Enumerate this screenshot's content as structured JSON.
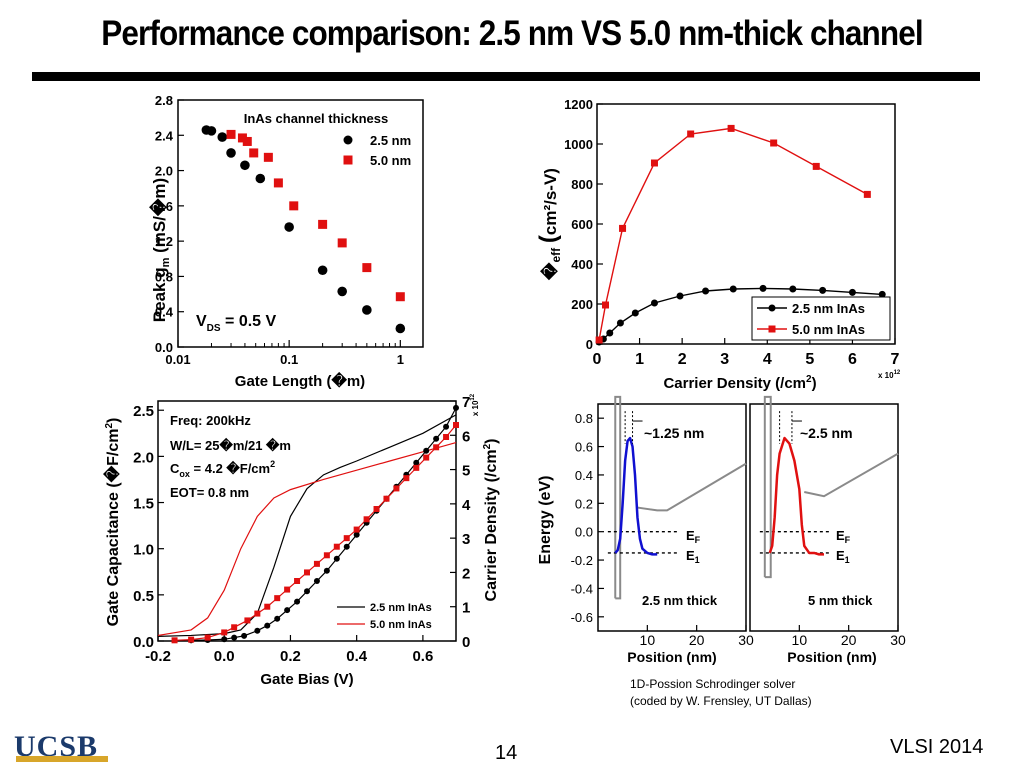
{
  "slide": {
    "title": "Performance comparison: 2.5 nm VS 5.0 nm-thick channel",
    "page_number": "14",
    "venue": "VLSI 2014",
    "logo_text": "UCSB",
    "solver_note_line1": "1D-Possion Schrodinger solver",
    "solver_note_line2": "(coded by W. Frensley, UT Dallas)"
  },
  "colors": {
    "series_25": "#000000",
    "series_50": "#e01010",
    "band_25": "#1010d0",
    "band_50": "#e01010",
    "band_edge": "#8a8a8a"
  },
  "chart_data": [
    {
      "type": "scatter",
      "xscale": "log",
      "xlim": [
        0.01,
        1.6
      ],
      "ylim": [
        0.0,
        2.8
      ],
      "xticks": [
        "0.01",
        "0.1",
        "1"
      ],
      "yticks": [
        "0.0",
        "0.4",
        "0.8",
        "1.2",
        "1.6",
        "2.0",
        "2.4",
        "2.8"
      ],
      "xlabel": "Gate Length (�m)",
      "ylabel": "Peak g",
      "ylabel_sub": "m",
      "ylabel_unit": "(mS/�m)",
      "legend_title": "InAs channel thickness",
      "annotation_main": "V",
      "annotation_sub": "DS",
      "annotation_rest": "= 0.5 V",
      "series": [
        {
          "name": "2.5 nm",
          "x": [
            0.018,
            0.02,
            0.025,
            0.03,
            0.04,
            0.055,
            0.1,
            0.2,
            0.3,
            0.5,
            1.0
          ],
          "y": [
            2.46,
            2.45,
            2.38,
            2.2,
            2.06,
            1.91,
            1.36,
            0.87,
            0.63,
            0.42,
            0.21
          ]
        },
        {
          "name": "5.0 nm",
          "x": [
            0.03,
            0.038,
            0.042,
            0.048,
            0.065,
            0.08,
            0.11,
            0.2,
            0.3,
            0.5,
            1.0
          ],
          "y": [
            2.41,
            2.37,
            2.33,
            2.2,
            2.15,
            1.86,
            1.6,
            1.39,
            1.18,
            0.9,
            0.57
          ]
        }
      ]
    },
    {
      "type": "line",
      "xlim": [
        0,
        7
      ],
      "ylim": [
        0,
        1200
      ],
      "xticks": [
        "0",
        "1",
        "2",
        "3",
        "4",
        "5",
        "6",
        "7"
      ],
      "yticks": [
        "0",
        "200",
        "400",
        "600",
        "800",
        "1000",
        "1200"
      ],
      "x_multiplier": "x 10",
      "x_multiplier_exp": "12",
      "xlabel": "Carrier Density (/cm",
      "xlabel_sup": "2",
      "xlabel_end": ")",
      "ylabel_symbol": "�",
      "ylabel_sub": "eff",
      "ylabel_paren": "(",
      "ylabel_unit": "cm²/s-V)",
      "series": [
        {
          "name": "2.5 nm InAs",
          "x": [
            0.05,
            0.15,
            0.3,
            0.55,
            0.9,
            1.35,
            1.95,
            2.55,
            3.2,
            3.9,
            4.6,
            5.3,
            6.0,
            6.7
          ],
          "y": [
            10,
            25,
            55,
            105,
            155,
            205,
            240,
            265,
            275,
            278,
            275,
            268,
            258,
            248
          ]
        },
        {
          "name": "5.0 nm InAs",
          "x": [
            0.05,
            0.2,
            0.6,
            1.35,
            2.2,
            3.15,
            4.15,
            5.15,
            6.35
          ],
          "y": [
            20,
            195,
            578,
            905,
            1050,
            1078,
            1005,
            888,
            748
          ]
        }
      ]
    },
    {
      "type": "line",
      "xlim": [
        -0.2,
        0.7
      ],
      "ylim": [
        0.0,
        2.6
      ],
      "y2lim": [
        0,
        7
      ],
      "xticks": [
        "-0.2",
        "0.0",
        "0.2",
        "0.4",
        "0.6"
      ],
      "yticks": [
        "0.0",
        "0.5",
        "1.0",
        "1.5",
        "2.0",
        "2.5"
      ],
      "y2ticks": [
        "0",
        "1",
        "2",
        "3",
        "4",
        "5",
        "6",
        "7"
      ],
      "y2_multiplier": "x 10",
      "y2_multiplier_exp": "12",
      "xlabel": "Gate Bias (V)",
      "ylabel": "Gate Capacitance (�F/cm",
      "ylabel_sup": "2",
      "ylabel_end": ")",
      "y2label": "Carrier Density (/cm",
      "y2label_sup": "2",
      "y2label_end": ")",
      "info_freq": "Freq: 200kHz",
      "info_wl": "W/L= 25�m/21 �m",
      "info_cox_main": "C",
      "info_cox_sub": "ox",
      "info_cox_rest": "= 4.2 �F/cm",
      "info_cox_sup": "2",
      "info_eot": "EOT= 0.8 nm",
      "series": [
        {
          "name": "2.5 nm InAs",
          "axis": "left",
          "x": [
            -0.2,
            -0.1,
            0.0,
            0.05,
            0.1,
            0.15,
            0.2,
            0.25,
            0.3,
            0.35,
            0.4,
            0.5,
            0.6,
            0.7
          ],
          "y": [
            0.05,
            0.06,
            0.08,
            0.12,
            0.3,
            0.8,
            1.35,
            1.65,
            1.8,
            1.88,
            1.95,
            2.1,
            2.25,
            2.45
          ]
        },
        {
          "name": "5.0 nm InAs",
          "axis": "left",
          "x": [
            -0.2,
            -0.1,
            -0.05,
            0.0,
            0.05,
            0.1,
            0.15,
            0.2,
            0.3,
            0.4,
            0.5,
            0.6,
            0.7
          ],
          "y": [
            0.06,
            0.12,
            0.25,
            0.55,
            1.0,
            1.35,
            1.55,
            1.64,
            1.75,
            1.85,
            1.95,
            2.05,
            2.15
          ]
        },
        {
          "name": "2.5 nm InAs density",
          "axis": "right",
          "x": [
            -0.1,
            -0.05,
            0.0,
            0.03,
            0.06,
            0.1,
            0.13,
            0.16,
            0.19,
            0.22,
            0.25,
            0.28,
            0.31,
            0.34,
            0.37,
            0.4,
            0.43,
            0.46,
            0.49,
            0.52,
            0.55,
            0.58,
            0.61,
            0.64,
            0.67,
            0.7
          ],
          "y": [
            0.02,
            0.03,
            0.05,
            0.1,
            0.15,
            0.3,
            0.45,
            0.65,
            0.9,
            1.15,
            1.45,
            1.75,
            2.05,
            2.4,
            2.75,
            3.1,
            3.45,
            3.8,
            4.15,
            4.5,
            4.85,
            5.2,
            5.55,
            5.9,
            6.25,
            6.8
          ]
        },
        {
          "name": "5.0 nm InAs density",
          "axis": "right",
          "x": [
            -0.15,
            -0.1,
            -0.05,
            0.0,
            0.03,
            0.07,
            0.1,
            0.13,
            0.16,
            0.19,
            0.22,
            0.25,
            0.28,
            0.31,
            0.34,
            0.37,
            0.4,
            0.43,
            0.46,
            0.49,
            0.52,
            0.55,
            0.58,
            0.61,
            0.64,
            0.67,
            0.7
          ],
          "y": [
            0.02,
            0.04,
            0.1,
            0.25,
            0.4,
            0.6,
            0.8,
            1.0,
            1.25,
            1.5,
            1.75,
            2.0,
            2.25,
            2.5,
            2.75,
            3.0,
            3.25,
            3.55,
            3.85,
            4.15,
            4.45,
            4.75,
            5.05,
            5.35,
            5.65,
            5.95,
            6.3
          ]
        }
      ]
    },
    {
      "type": "line",
      "panels": [
        {
          "label": "2.5 nm thick",
          "width_label": "~1.25 nm",
          "xlim": [
            0,
            30
          ],
          "xticks": [
            "10",
            "20",
            "30"
          ]
        },
        {
          "label": "5 nm thick",
          "width_label": "~2.5 nm",
          "xlim": [
            0,
            30
          ],
          "xticks": [
            "10",
            "20",
            "30"
          ]
        }
      ],
      "ylim": [
        -0.7,
        0.9
      ],
      "yticks": [
        "0.8",
        "0.6",
        "0.4",
        "0.2",
        "0.0",
        "-0.2",
        "-0.4",
        "-0.6"
      ],
      "xlabel": "Position (nm)",
      "ylabel": "Energy (eV)",
      "fermi_label": "E",
      "fermi_sub": "F",
      "e1_label": "E",
      "e1_sub": "1",
      "series": [
        {
          "name": "wavefunction 2.5 nm",
          "x": [
            3.5,
            4.0,
            4.5,
            5.0,
            5.5,
            6.0,
            6.5,
            7.0,
            7.5,
            8.0,
            8.5,
            9.0,
            10.0,
            11.0,
            12.0
          ],
          "y": [
            -0.15,
            -0.13,
            -0.05,
            0.2,
            0.5,
            0.64,
            0.66,
            0.6,
            0.4,
            0.1,
            -0.05,
            -0.12,
            -0.15,
            -0.16,
            -0.16
          ]
        },
        {
          "name": "wavefunction 5 nm",
          "x": [
            4.0,
            4.5,
            5.0,
            5.5,
            6.0,
            7.0,
            8.0,
            9.0,
            10.0,
            10.5,
            11.0,
            12.0,
            13.0,
            14.0,
            15.0
          ],
          "y": [
            -0.15,
            -0.1,
            0.1,
            0.4,
            0.55,
            0.66,
            0.62,
            0.5,
            0.3,
            0.05,
            -0.1,
            -0.15,
            -0.15,
            -0.16,
            -0.16
          ]
        }
      ]
    }
  ]
}
